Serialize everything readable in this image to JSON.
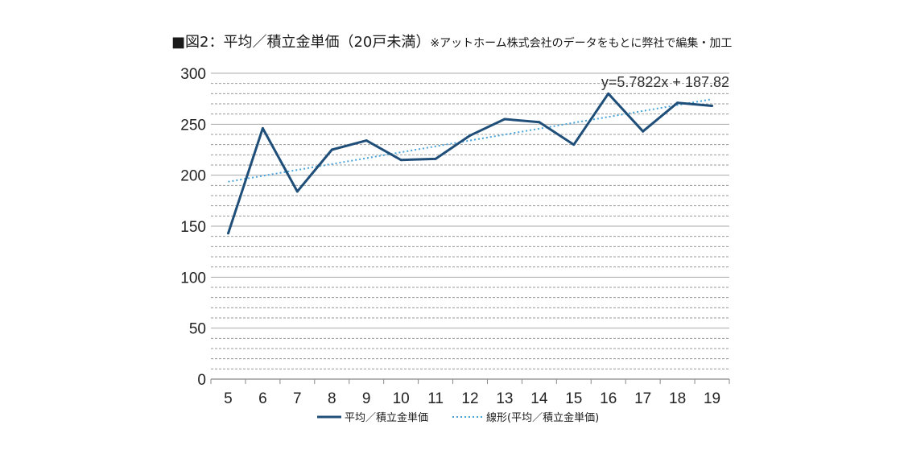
{
  "chart_data": {
    "type": "line",
    "title": "■図2：平均／積立金単価（20戸未満）",
    "title_note": "※アットホーム株式会社のデータをもとに弊社で編集・加工",
    "categories": [
      "5",
      "6",
      "7",
      "8",
      "9",
      "10",
      "11",
      "12",
      "13",
      "14",
      "15",
      "16",
      "17",
      "18",
      "19"
    ],
    "x": [
      5,
      6,
      7,
      8,
      9,
      10,
      11,
      12,
      13,
      14,
      15,
      16,
      17,
      18,
      19
    ],
    "ylim": [
      0,
      300
    ],
    "yticks": [
      0,
      50,
      100,
      150,
      200,
      250,
      300
    ],
    "grid": true,
    "legend_placement": "bottom",
    "series": [
      {
        "name": "平均／積立金単価",
        "values": [
          143,
          246,
          184,
          225,
          234,
          215,
          216,
          239,
          255,
          252,
          230,
          280,
          243,
          271,
          268
        ],
        "color": "#1f4e79",
        "style": "solid"
      }
    ],
    "trendline": {
      "name": "線形(平均／積立金単価)",
      "equation": "y=5.7822x + 187.82",
      "slope": 5.7822,
      "intercept": 187.82,
      "color": "#4aa3d8",
      "style": "dotted"
    }
  }
}
